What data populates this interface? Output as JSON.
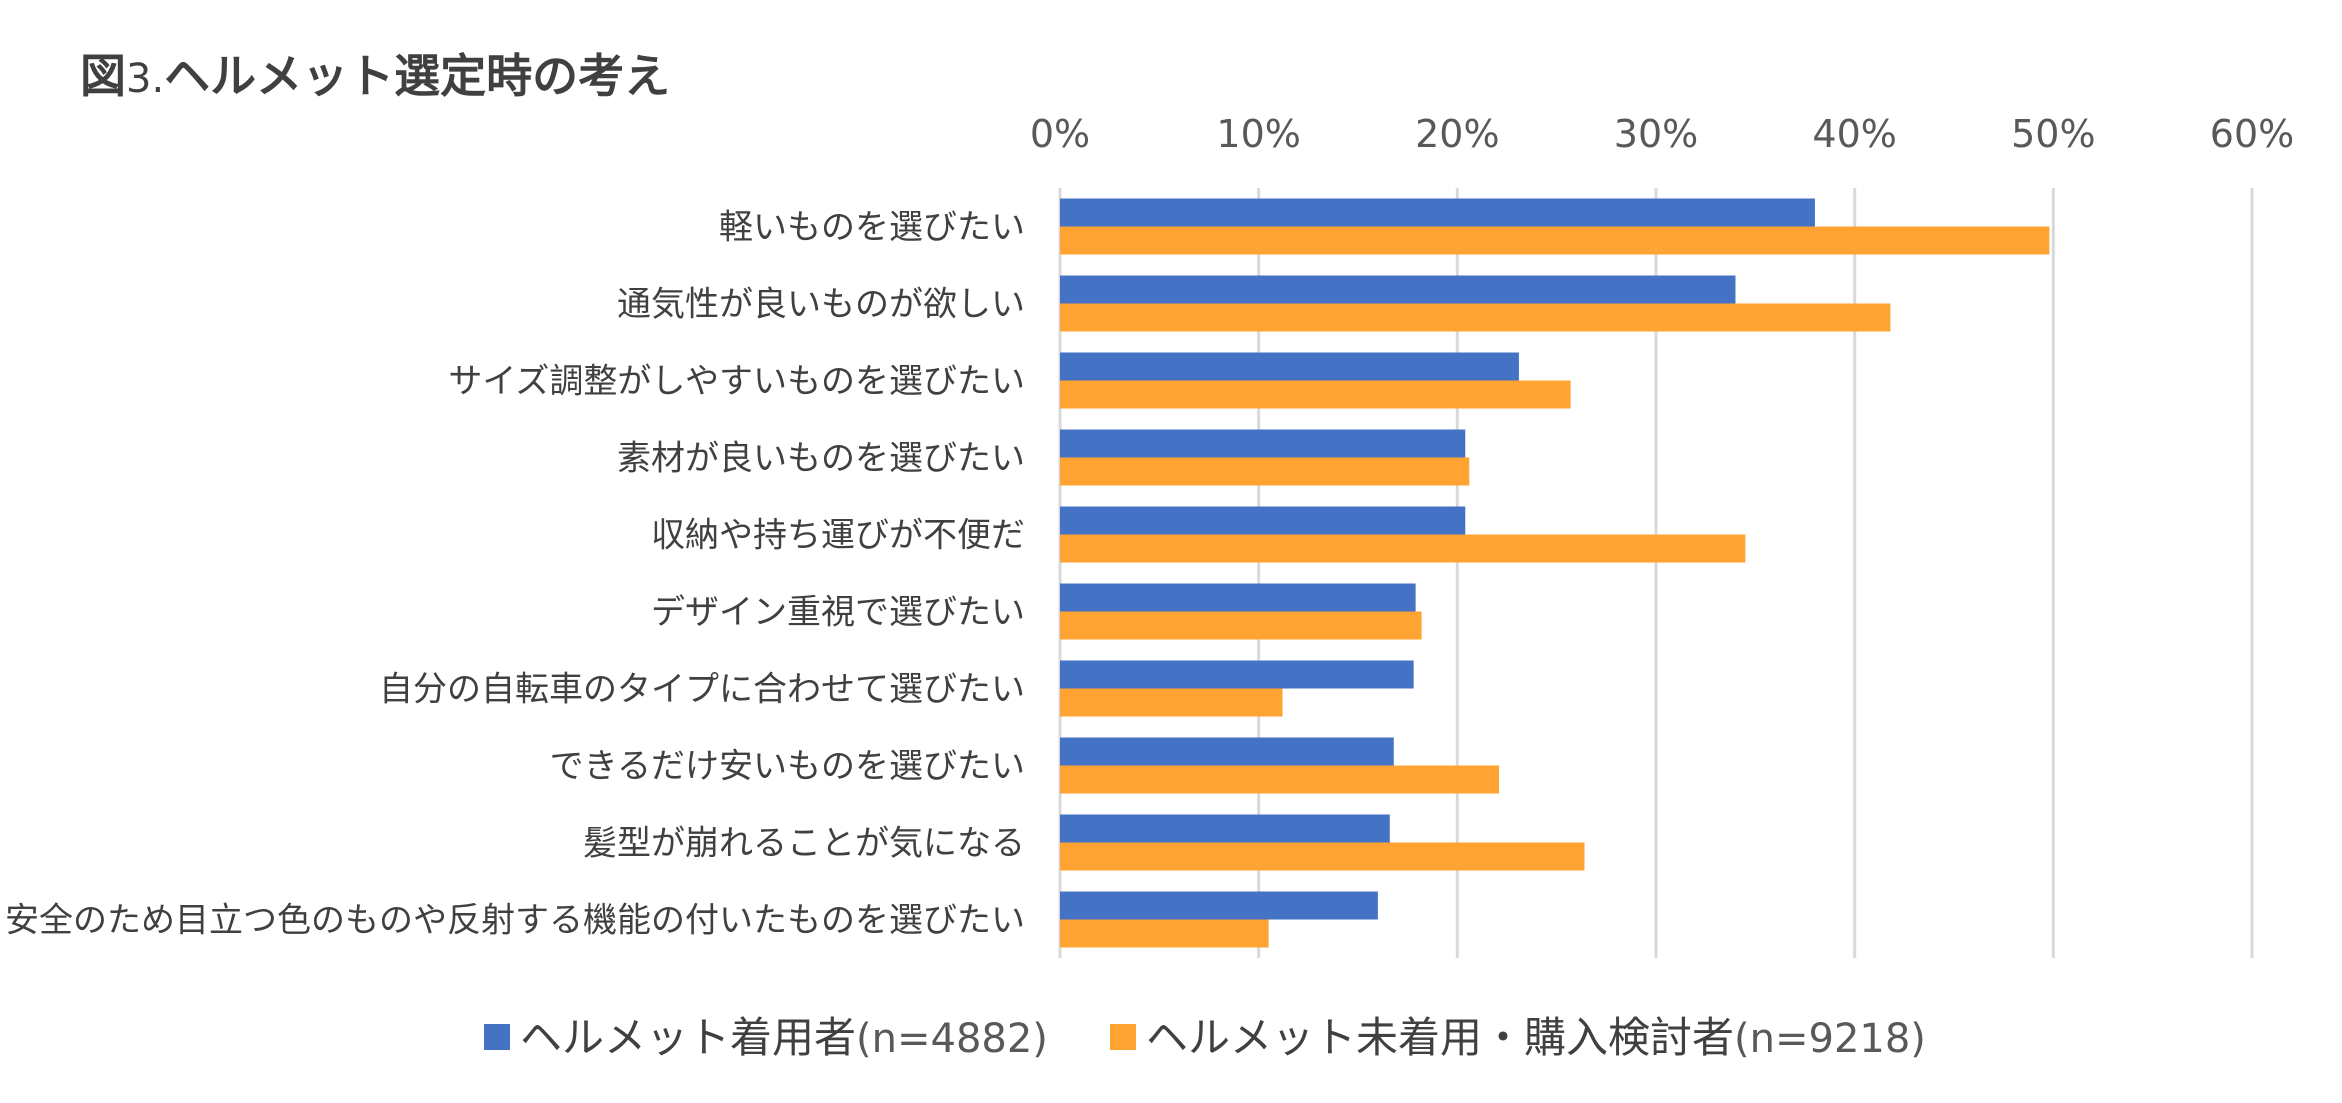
{
  "title": {
    "prefix": "図",
    "number": "3.",
    "text": "ヘルメット選定時の考え"
  },
  "chart_data": {
    "type": "bar",
    "orientation": "horizontal",
    "title": "図3.ヘルメット選定時の考え",
    "xlim": [
      0,
      60
    ],
    "ticks": [
      0,
      10,
      20,
      30,
      40,
      50,
      60
    ],
    "tick_labels": [
      "0%",
      "10%",
      "20%",
      "30%",
      "40%",
      "50%",
      "60%"
    ],
    "grid": true,
    "legend_position": "bottom",
    "categories": [
      "軽いものを選びたい",
      "通気性が良いものが欲しい",
      "サイズ調整がしやすいものを選びたい",
      "素材が良いものを選びたい",
      "収納や持ち運びが不便だ",
      "デザイン重視で選びたい",
      "自分の自転車のタイプに合わせて選びたい",
      "できるだけ安いものを選びたい",
      "髪型が崩れることが気になる",
      "安全のため目立つ色のものや反射する機能の付いたものを選びたい"
    ],
    "series": [
      {
        "name": "ヘルメット着用者",
        "n_label": "(n=4882)",
        "color": "#4472C4",
        "values": [
          38.0,
          34.0,
          23.1,
          20.4,
          20.4,
          17.9,
          17.8,
          16.8,
          16.6,
          16.0
        ]
      },
      {
        "name": "ヘルメット未着用・購入検討者",
        "n_label": "(n=9218)",
        "color": "#FFA332",
        "values": [
          49.8,
          41.8,
          25.7,
          20.6,
          34.5,
          18.2,
          11.2,
          22.1,
          26.4,
          10.5
        ]
      }
    ]
  }
}
